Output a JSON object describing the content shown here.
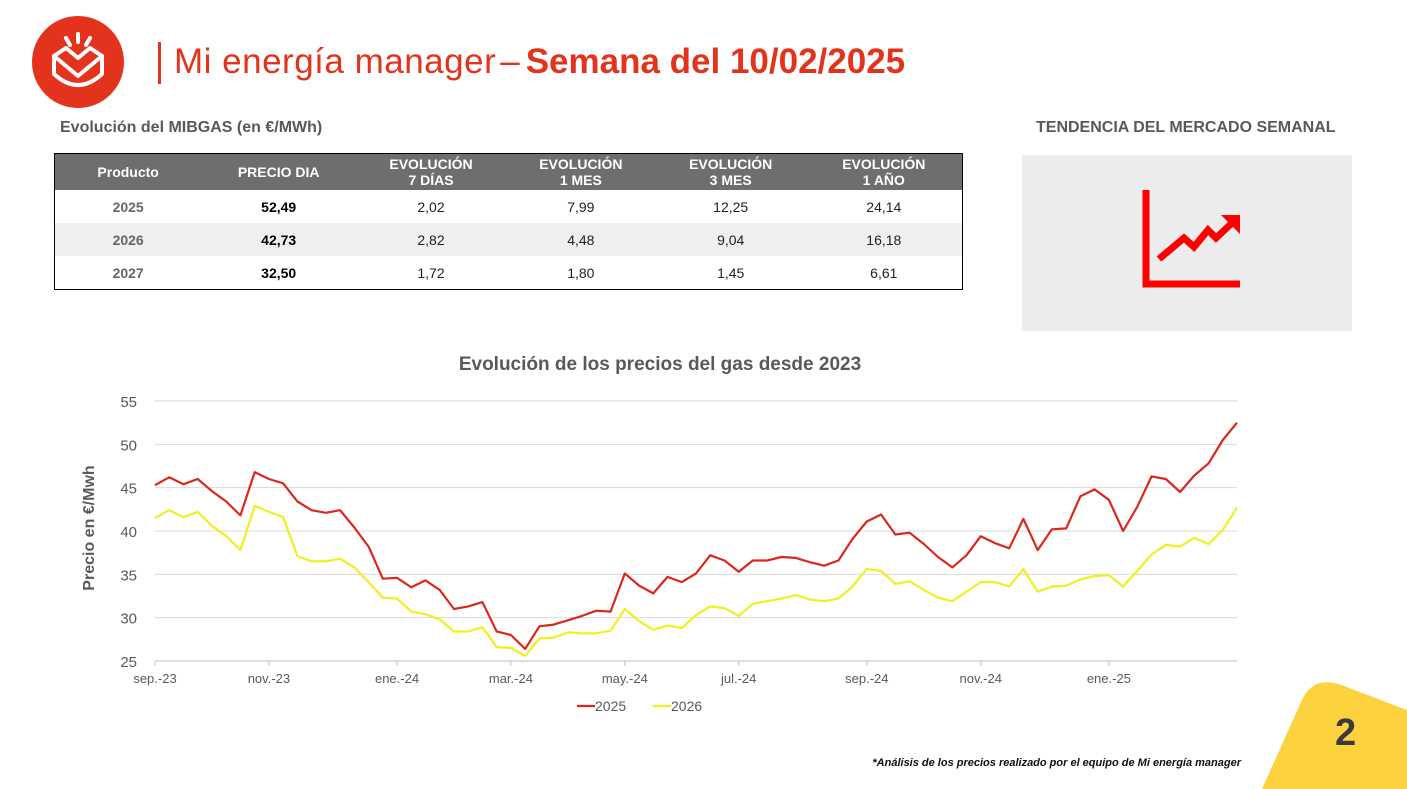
{
  "header": {
    "title_light": "Mi energía manager",
    "title_sep": "–",
    "title_bold": "Semana del 10/02/2025"
  },
  "table_section": {
    "title": "Evolución del MIBGAS (en €/MWh)",
    "columns": [
      {
        "l1": "Producto",
        "l2": ""
      },
      {
        "l1": "PRECIO DIA",
        "l2": ""
      },
      {
        "l1": "EVOLUCIÓN",
        "l2": "7 DÍAS"
      },
      {
        "l1": "EVOLUCIÓN",
        "l2": "1 MES"
      },
      {
        "l1": "EVOLUCIÓN",
        "l2": "3 MES"
      },
      {
        "l1": "EVOLUCIÓN",
        "l2": "1 AÑO"
      }
    ],
    "rows": [
      [
        "2025",
        "52,49",
        "2,02",
        "7,99",
        "12,25",
        "24,14"
      ],
      [
        "2026",
        "42,73",
        "2,82",
        "4,48",
        "9,04",
        "16,18"
      ],
      [
        "2027",
        "32,50",
        "1,72",
        "1,80",
        "1,45",
        "6,61"
      ]
    ]
  },
  "trend": {
    "title": "TENDENCIA DEL MERCADO SEMANAL",
    "icon": "trend-up-icon",
    "color": "#ff0000"
  },
  "chart_data": {
    "type": "line",
    "title": "Evolución de los precios del gas desde 2023",
    "xlabel": "",
    "ylabel": "Precio en €/Mwh",
    "ylim": [
      25,
      55
    ],
    "yticks": [
      25,
      30,
      35,
      40,
      45,
      50,
      55
    ],
    "x_tick_labels": [
      "sep.-23",
      "nov.-23",
      "ene.-24",
      "mar.-24",
      "may.-24",
      "jul.-24",
      "sep.-24",
      "nov.-24",
      "ene.-25"
    ],
    "x_tick_index": [
      0,
      8,
      17,
      25,
      33,
      41,
      50,
      58,
      67
    ],
    "legend_position": "bottom",
    "grid": true,
    "series": [
      {
        "name": "2025",
        "color": "#d9281c",
        "values": [
          45.3,
          46.2,
          45.4,
          46.0,
          44.6,
          43.4,
          41.8,
          46.8,
          46.0,
          45.5,
          43.4,
          42.4,
          42.1,
          42.4,
          40.4,
          38.2,
          34.5,
          34.6,
          33.5,
          34.3,
          33.2,
          31.0,
          31.3,
          31.8,
          28.4,
          28.0,
          26.4,
          29.0,
          29.2,
          29.7,
          30.2,
          30.8,
          30.7,
          35.1,
          33.7,
          32.8,
          34.7,
          34.1,
          35.1,
          37.2,
          36.6,
          35.3,
          36.6,
          36.6,
          37.0,
          36.9,
          36.4,
          36.0,
          36.6,
          39.1,
          41.1,
          41.9,
          39.6,
          39.8,
          38.5,
          37.0,
          35.8,
          37.2,
          39.4,
          38.6,
          38.0,
          41.4,
          37.8,
          40.2,
          40.3,
          44.0,
          44.8,
          43.6,
          40.0,
          42.8,
          46.3,
          46.0,
          44.5,
          46.4,
          47.8,
          50.5,
          52.5
        ]
      },
      {
        "name": "2026",
        "color": "#f2ef1e",
        "values": [
          41.5,
          42.4,
          41.6,
          42.2,
          40.6,
          39.4,
          37.8,
          42.9,
          42.2,
          41.6,
          37.1,
          36.5,
          36.5,
          36.8,
          35.8,
          34.1,
          32.3,
          32.2,
          30.7,
          30.4,
          29.8,
          28.4,
          28.4,
          28.9,
          26.6,
          26.5,
          25.6,
          27.6,
          27.7,
          28.3,
          28.2,
          28.2,
          28.5,
          31.0,
          29.6,
          28.6,
          29.1,
          28.8,
          30.3,
          31.3,
          31.1,
          30.2,
          31.6,
          31.9,
          32.2,
          32.6,
          32.1,
          31.9,
          32.2,
          33.6,
          35.6,
          35.4,
          33.9,
          34.2,
          33.2,
          32.3,
          31.9,
          33.0,
          34.1,
          34.1,
          33.6,
          35.6,
          33.0,
          33.6,
          33.7,
          34.4,
          34.8,
          34.9,
          33.6,
          35.4,
          37.3,
          38.4,
          38.2,
          39.2,
          38.5,
          40.1,
          42.7
        ]
      }
    ]
  },
  "footnote": "*Análisis de los precios realizado por el equipo de Mi energía manager",
  "page_number": "2",
  "colors": {
    "brand_red": "#e3331d",
    "table_header": "#6e6e6e",
    "corner_yellow": "#fcd23e"
  }
}
